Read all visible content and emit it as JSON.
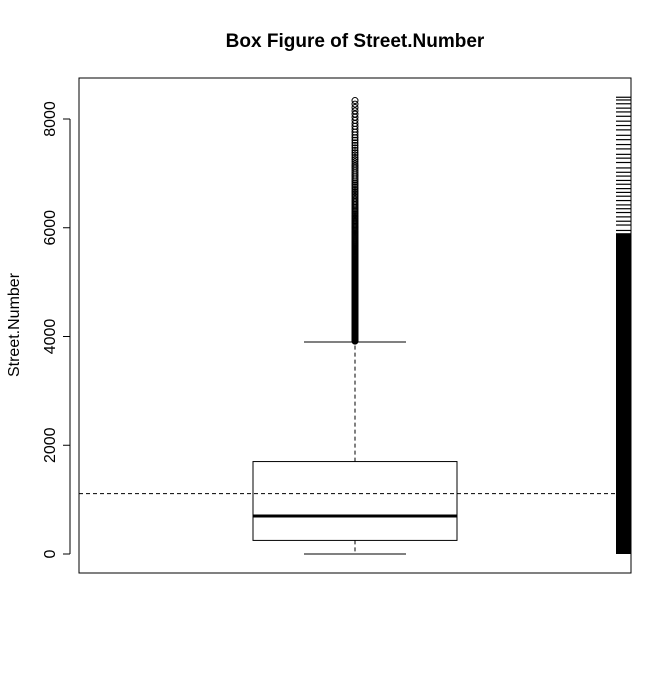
{
  "chart_data": {
    "type": "box",
    "title": "Box Figure of Street.Number",
    "xlabel": "",
    "ylabel": "Street.Number",
    "ylim": [
      -350,
      8750
    ],
    "yticks": [
      0,
      2000,
      4000,
      6000,
      8000
    ],
    "box": {
      "min_whisker": 0,
      "q1": 250,
      "median": 700,
      "q3": 1700,
      "max_whisker": 3900
    },
    "mean_line": 1110,
    "outliers_range": [
      3900,
      8400
    ],
    "rug_solid_range": [
      0,
      5900
    ],
    "rug_sparse_values": [
      5950,
      6050,
      6120,
      6200,
      6280,
      6350,
      6420,
      6500,
      6580,
      6650,
      6720,
      6800,
      6870,
      6950,
      7020,
      7100,
      7200,
      7280,
      7350,
      7450,
      7530,
      7620,
      7700,
      7800,
      7880,
      7960,
      8050,
      8130,
      8200,
      8280,
      8350,
      8400
    ],
    "grid": false,
    "legend": "none"
  }
}
